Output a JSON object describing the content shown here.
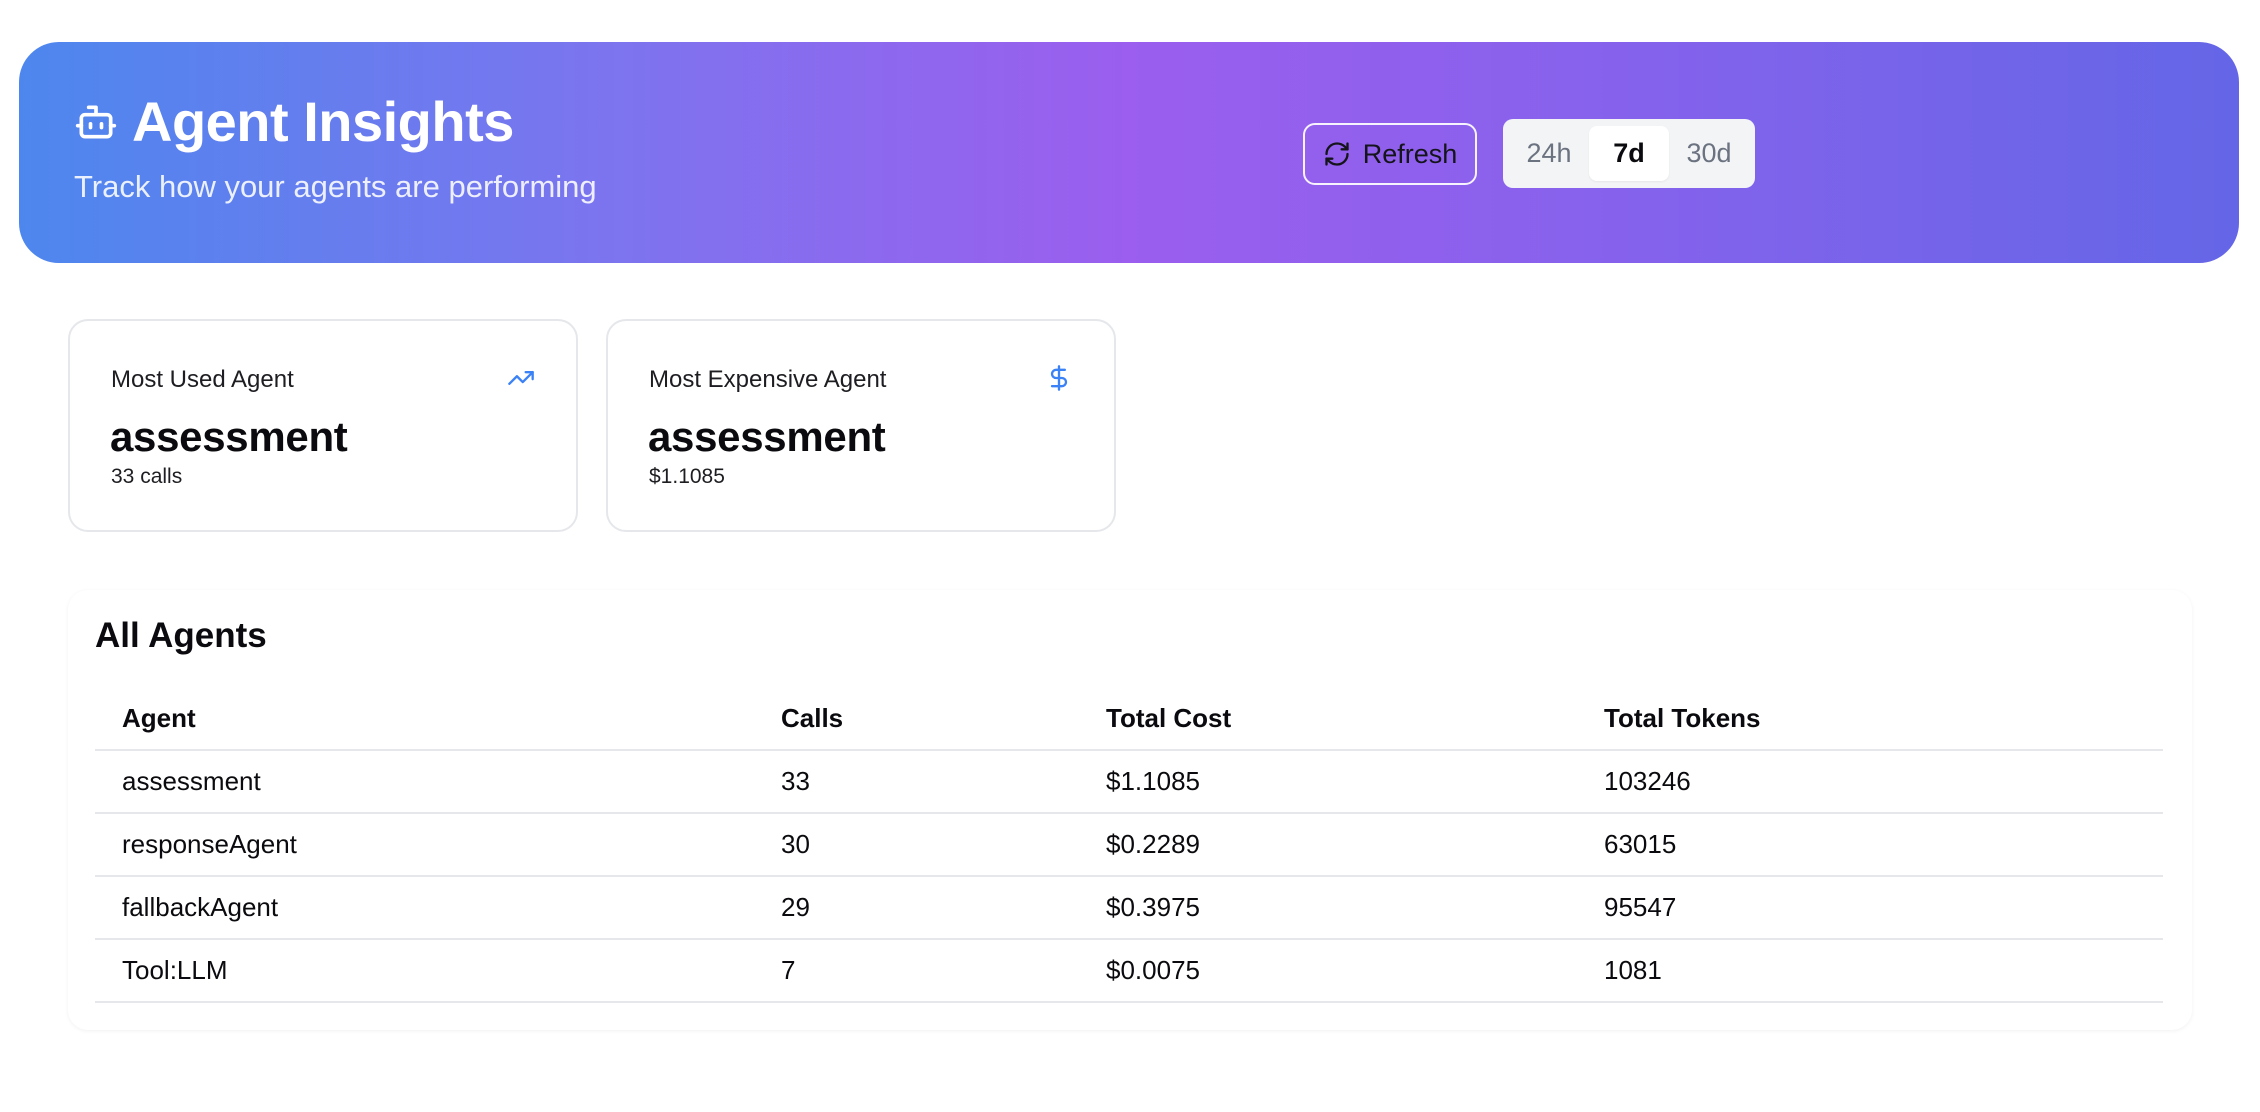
{
  "header": {
    "title": "Agent Insights",
    "subtitle": "Track how your agents are performing",
    "refresh_label": "Refresh",
    "range_options": [
      "24h",
      "7d",
      "30d"
    ],
    "selected_range": "7d"
  },
  "stats": {
    "most_used": {
      "label": "Most Used Agent",
      "value": "assessment",
      "detail": "33 calls",
      "icon": "trending-up-icon"
    },
    "most_expensive": {
      "label": "Most Expensive Agent",
      "value": "assessment",
      "detail": "$1.1085",
      "icon": "dollar-icon"
    }
  },
  "agents_table": {
    "title": "All Agents",
    "columns": [
      "Agent",
      "Calls",
      "Total Cost",
      "Total Tokens"
    ],
    "rows": [
      [
        "assessment",
        "33",
        "$1.1085",
        "103246"
      ],
      [
        "responseAgent",
        "30",
        "$0.2289",
        "63015"
      ],
      [
        "fallbackAgent",
        "29",
        "$0.3975",
        "95547"
      ],
      [
        "Tool:LLM",
        "7",
        "$0.0075",
        "1081"
      ]
    ]
  },
  "colors": {
    "accent_blue": "#3b82f6",
    "gradient_start": "#4d87ee",
    "gradient_mid": "#9b5eee",
    "gradient_end": "#6466e7"
  }
}
